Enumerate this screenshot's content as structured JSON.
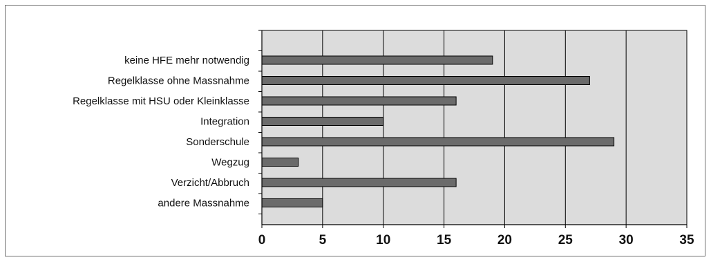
{
  "chart_data": {
    "type": "bar",
    "orientation": "horizontal",
    "categories": [
      "keine HFE mehr notwendig",
      "Regelklasse ohne Massnahme",
      "Regelklasse mit HSU oder Kleinklasse",
      "Integration",
      "Sonderschule",
      "Wegzug",
      "Verzicht/Abbruch",
      "andere Massnahme"
    ],
    "values": [
      19,
      27,
      16,
      10,
      29,
      3,
      16,
      5
    ],
    "xlim": [
      0,
      35
    ],
    "xticks": [
      "0",
      "5",
      "10",
      "15",
      "20",
      "25",
      "30",
      "35"
    ],
    "grid": "vertical",
    "title": "",
    "xlabel": "",
    "ylabel": "",
    "colors": {
      "bar": "#6b6b6b",
      "plot_bg": "#dcdcdc",
      "grid": "#000000"
    }
  }
}
